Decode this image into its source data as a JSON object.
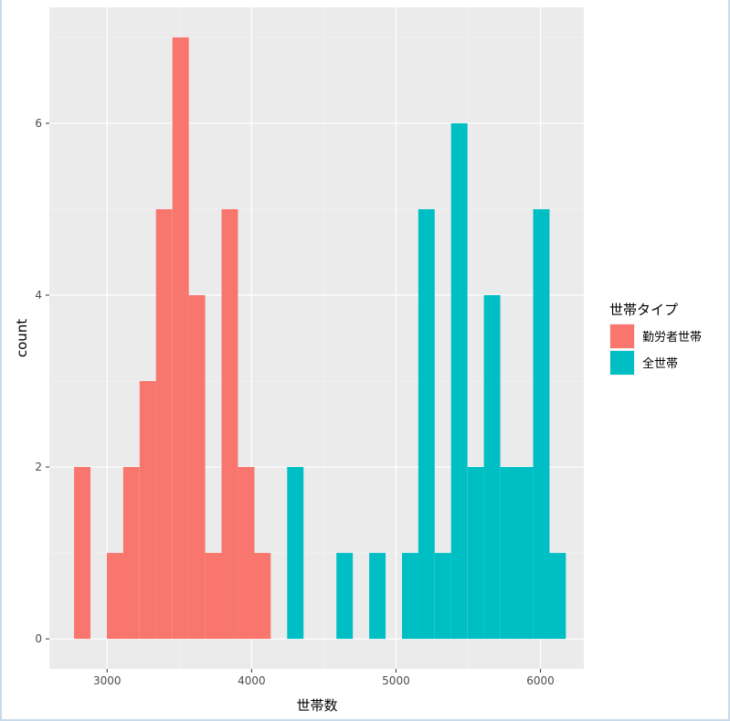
{
  "chart_data": {
    "type": "bar",
    "subtype": "histogram",
    "xlabel": "世帯数",
    "ylabel": "count",
    "xlim": [
      2600,
      6300
    ],
    "ylim": [
      -0.35,
      7.35
    ],
    "x_ticks": [
      3000,
      4000,
      5000,
      6000
    ],
    "y_ticks": [
      0,
      2,
      4,
      6
    ],
    "bin_width": 113.5,
    "grid": true,
    "legend_position": "right",
    "legend_title": "世帯タイプ",
    "series": [
      {
        "name": "勤労者世帯",
        "color": "#F8766D",
        "bins": [
          {
            "x": 2828,
            "count": 2
          },
          {
            "x": 3055,
            "count": 1
          },
          {
            "x": 3168,
            "count": 2
          },
          {
            "x": 3282,
            "count": 3
          },
          {
            "x": 3395,
            "count": 5
          },
          {
            "x": 3509,
            "count": 7
          },
          {
            "x": 3622,
            "count": 4
          },
          {
            "x": 3736,
            "count": 1
          },
          {
            "x": 3849,
            "count": 5
          },
          {
            "x": 3963,
            "count": 2
          },
          {
            "x": 4076,
            "count": 1
          }
        ]
      },
      {
        "name": "全世帯",
        "color": "#00BFC4",
        "bins": [
          {
            "x": 4303,
            "count": 2
          },
          {
            "x": 4644,
            "count": 1
          },
          {
            "x": 4871,
            "count": 1
          },
          {
            "x": 5098,
            "count": 1
          },
          {
            "x": 5211,
            "count": 5
          },
          {
            "x": 5325,
            "count": 1
          },
          {
            "x": 5438,
            "count": 6
          },
          {
            "x": 5552,
            "count": 2
          },
          {
            "x": 5665,
            "count": 4
          },
          {
            "x": 5779,
            "count": 2
          },
          {
            "x": 5892,
            "count": 2
          },
          {
            "x": 6006,
            "count": 5
          },
          {
            "x": 6119,
            "count": 1
          }
        ]
      }
    ]
  }
}
